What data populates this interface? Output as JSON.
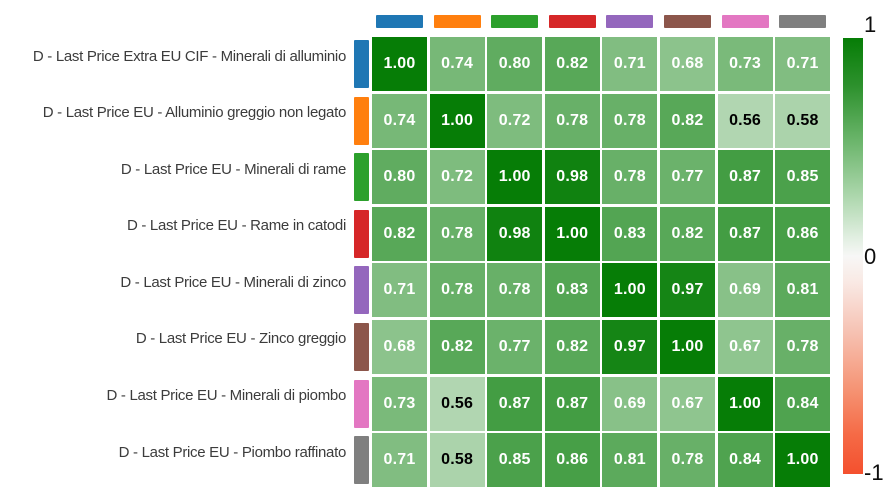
{
  "chart_data": {
    "type": "heatmap",
    "title": "",
    "rows": [
      "D - Last Price Extra EU CIF - Minerali di alluminio",
      "D - Last Price EU - Alluminio greggio non legato",
      "D - Last Price EU - Minerali di rame",
      "D - Last Price EU - Rame in catodi",
      "D - Last Price EU - Minerali di zinco",
      "D - Last Price EU - Zinco greggio",
      "D - Last Price EU - Minerali di piombo",
      "D - Last Price EU - Piombo raffinato"
    ],
    "columns": [
      "D - Last Price Extra EU CIF - Minerali di alluminio",
      "D - Last Price EU - Alluminio greggio non legato",
      "D - Last Price EU - Minerali di rame",
      "D - Last Price EU - Rame in catodi",
      "D - Last Price EU - Minerali di zinco",
      "D - Last Price EU - Zinco greggio",
      "D - Last Price EU - Minerali di piombo",
      "D - Last Price EU - Piombo raffinato"
    ],
    "category_colors": [
      "#1f77b4",
      "#ff7f0e",
      "#2ca02c",
      "#d62728",
      "#9467bd",
      "#8c564b",
      "#e377c2",
      "#7f7f7f"
    ],
    "matrix": [
      [
        "1.00",
        "0.74",
        "0.80",
        "0.82",
        "0.71",
        "0.68",
        "0.73",
        "0.71"
      ],
      [
        "0.74",
        "1.00",
        "0.72",
        "0.78",
        "0.78",
        "0.82",
        "0.56",
        "0.58"
      ],
      [
        "0.80",
        "0.72",
        "1.00",
        "0.98",
        "0.78",
        "0.77",
        "0.87",
        "0.85"
      ],
      [
        "0.82",
        "0.78",
        "0.98",
        "1.00",
        "0.83",
        "0.82",
        "0.87",
        "0.86"
      ],
      [
        "0.71",
        "0.78",
        "0.78",
        "0.83",
        "1.00",
        "0.97",
        "0.69",
        "0.81"
      ],
      [
        "0.68",
        "0.82",
        "0.77",
        "0.82",
        "0.97",
        "1.00",
        "0.67",
        "0.78"
      ],
      [
        "0.73",
        "0.56",
        "0.87",
        "0.87",
        "0.69",
        "0.67",
        "1.00",
        "0.84"
      ],
      [
        "0.71",
        "0.58",
        "0.85",
        "0.86",
        "0.81",
        "0.78",
        "0.84",
        "1.00"
      ]
    ],
    "colorbar": {
      "max_label": "1",
      "mid_label": "0",
      "min_label": "-1",
      "max_color": "#067d06",
      "mid_color": "#ffffff",
      "min_color": "#f4502e"
    },
    "value_text_colors": {
      "on_dark": "#ffffff",
      "on_light": "#000000"
    },
    "zlim": [
      -1,
      1
    ]
  }
}
